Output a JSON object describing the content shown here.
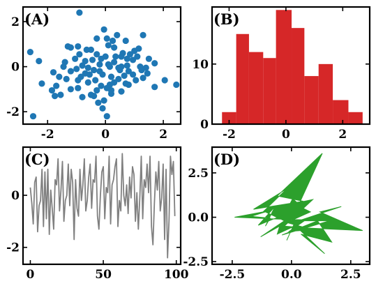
{
  "chart_data": [
    {
      "type": "scatter",
      "panel_label": "(A)",
      "color": "#1f77b4",
      "xlim": [
        -2.85,
        2.6
      ],
      "ylim": [
        -2.55,
        2.65
      ],
      "xticks": [
        -2,
        0,
        2
      ],
      "xtick_labels": [
        "-2",
        "0",
        "2"
      ],
      "yticks": [
        -2,
        0,
        2
      ],
      "ytick_labels": [
        "-2",
        "0",
        "2"
      ],
      "points": [
        [
          -0.9,
          2.4
        ],
        [
          -2.6,
          0.65
        ],
        [
          -1.2,
          0.85
        ],
        [
          -0.5,
          0.75
        ],
        [
          0.3,
          0.2
        ],
        [
          -0.35,
          -0.6
        ],
        [
          1.2,
          0.0
        ],
        [
          -0.7,
          -0.3
        ],
        [
          -1.2,
          -1.0
        ],
        [
          -0.95,
          -0.6
        ],
        [
          0.1,
          0.95
        ],
        [
          -0.9,
          0.55
        ],
        [
          0.5,
          -0.15
        ],
        [
          -1.4,
          0.2
        ],
        [
          1.7,
          -0.9
        ],
        [
          -0.15,
          -0.85
        ],
        [
          -0.6,
          -0.7
        ],
        [
          0.75,
          0.35
        ],
        [
          -1.3,
          0.9
        ],
        [
          1.1,
          0.45
        ],
        [
          -0.7,
          0.25
        ],
        [
          0.2,
          -1.2
        ],
        [
          -0.05,
          -1.5
        ],
        [
          -0.25,
          -1.6
        ],
        [
          0.3,
          -0.7
        ],
        [
          0.55,
          0.0
        ],
        [
          1.15,
          0.8
        ],
        [
          0.15,
          0.0
        ],
        [
          -1.05,
          0.35
        ],
        [
          -0.6,
          -0.05
        ],
        [
          -0.2,
          0.1
        ],
        [
          0.3,
          0.85
        ],
        [
          -0.45,
          0.3
        ],
        [
          -0.3,
          1.25
        ],
        [
          0.05,
          1.25
        ],
        [
          1.3,
          1.4
        ],
        [
          0.7,
          1.15
        ],
        [
          -1.8,
          -0.25
        ],
        [
          -2.3,
          0.25
        ],
        [
          -2.2,
          -0.75
        ],
        [
          -1.85,
          -1.05
        ],
        [
          -1.6,
          -0.45
        ],
        [
          -1.55,
          -1.25
        ],
        [
          -1.35,
          -0.55
        ],
        [
          -0.95,
          -0.95
        ],
        [
          -1.0,
          -0.1
        ],
        [
          -0.8,
          0.05
        ],
        [
          -0.4,
          -0.15
        ],
        [
          -0.1,
          -0.35
        ],
        [
          0.0,
          0.45
        ],
        [
          0.35,
          0.45
        ],
        [
          0.6,
          0.6
        ],
        [
          0.85,
          0.55
        ],
        [
          0.95,
          0.3
        ],
        [
          0.8,
          -0.2
        ],
        [
          0.95,
          -0.35
        ],
        [
          1.25,
          -0.15
        ],
        [
          1.45,
          -0.3
        ],
        [
          1.5,
          0.35
        ],
        [
          1.7,
          0.15
        ],
        [
          1.3,
          -0.5
        ],
        [
          2.05,
          -0.6
        ],
        [
          2.45,
          -0.8
        ],
        [
          0.05,
          -0.95
        ],
        [
          0.2,
          -0.45
        ],
        [
          0.45,
          -0.55
        ],
        [
          -0.3,
          -1.05
        ],
        [
          -0.5,
          -1.25
        ],
        [
          -0.8,
          -1.35
        ],
        [
          -0.1,
          -1.85
        ],
        [
          0.05,
          -2.2
        ],
        [
          -0.4,
          -1.3
        ],
        [
          0.7,
          -0.75
        ],
        [
          0.55,
          -1.1
        ],
        [
          -0.05,
          1.65
        ],
        [
          -0.3,
          0.55
        ],
        [
          -1.75,
          -1.3
        ],
        [
          0.8,
          -0.8
        ],
        [
          1.05,
          -0.6
        ],
        [
          -0.65,
          0.75
        ],
        [
          0.25,
          1.15
        ],
        [
          0.55,
          0.45
        ],
        [
          0.1,
          0.1
        ],
        [
          -0.15,
          0.35
        ],
        [
          -0.55,
          -0.35
        ],
        [
          -1.45,
          0.0
        ],
        [
          -1.2,
          -0.2
        ],
        [
          -2.5,
          -2.2
        ],
        [
          -1.7,
          -0.85
        ],
        [
          0.75,
          0.05
        ],
        [
          1.4,
          -0.05
        ],
        [
          1.0,
          0.7
        ],
        [
          0.45,
          -0.05
        ],
        [
          -0.85,
          -0.45
        ],
        [
          0.15,
          -0.8
        ],
        [
          0.4,
          1.4
        ],
        [
          0.2,
          -1.05
        ],
        [
          -0.2,
          -0.2
        ],
        [
          -0.95,
          0.9
        ],
        [
          0.65,
          -0.4
        ]
      ]
    },
    {
      "type": "bar",
      "panel_label": "(B)",
      "color": "#d62728",
      "xlim": [
        -2.6,
        2.95
      ],
      "ylim": [
        0,
        19.5
      ],
      "xticks": [
        -2,
        0,
        2
      ],
      "xtick_labels": [
        "-2",
        "0",
        "2"
      ],
      "yticks": [
        0,
        10
      ],
      "ytick_labels": [
        "0",
        "10"
      ],
      "bins": [
        {
          "x0": -2.25,
          "x1": -1.75,
          "count": 2
        },
        {
          "x0": -1.75,
          "x1": -1.3,
          "count": 15
        },
        {
          "x0": -1.3,
          "x1": -0.8,
          "count": 12
        },
        {
          "x0": -0.8,
          "x1": -0.35,
          "count": 11
        },
        {
          "x0": -0.35,
          "x1": 0.2,
          "count": 19
        },
        {
          "x0": 0.2,
          "x1": 0.65,
          "count": 16
        },
        {
          "x0": 0.65,
          "x1": 1.15,
          "count": 8
        },
        {
          "x0": 1.15,
          "x1": 1.65,
          "count": 10
        },
        {
          "x0": 1.65,
          "x1": 2.2,
          "count": 4
        },
        {
          "x0": 2.2,
          "x1": 2.7,
          "count": 2
        }
      ]
    },
    {
      "type": "line",
      "panel_label": "(C)",
      "color": "#808080",
      "xlim": [
        -5,
        103
      ],
      "ylim": [
        -2.65,
        1.85
      ],
      "xticks": [
        0,
        50,
        100
      ],
      "xtick_labels": [
        "0",
        "50",
        "100"
      ],
      "yticks": [
        -2,
        0
      ],
      "ytick_labels": [
        "-2",
        "0"
      ],
      "values": [
        0.3,
        -0.3,
        -1.1,
        0.5,
        0.7,
        -1.4,
        -0.4,
        -0.2,
        1.0,
        -1.2,
        0.9,
        -0.9,
        1.0,
        -1.5,
        0.2,
        -0.5,
        -1.3,
        0.6,
        0.4,
        1.4,
        -0.6,
        0.2,
        1.3,
        -1.0,
        -0.2,
        0.0,
        1.2,
        -0.4,
        1.0,
        0.5,
        -1.7,
        0.6,
        -0.5,
        -0.8,
        1.0,
        -0.2,
        0.4,
        1.4,
        -0.6,
        -0.2,
        0.7,
        1.2,
        -0.5,
        0.6,
        0.5,
        1.5,
        -0.8,
        -1.3,
        0.0,
        0.9,
        1.1,
        -0.9,
        0.3,
        0.1,
        1.5,
        -1.1,
        0.4,
        0.6,
        1.1,
        1.4,
        -1.2,
        -0.2,
        -0.6,
        1.6,
        0.0,
        -0.4,
        0.4,
        -0.7,
        0.7,
        -0.1,
        1.1,
        0.8,
        -1.0,
        0.1,
        -1.3,
        -0.1,
        1.5,
        -0.9,
        0.6,
        0.3,
        1.2,
        0.1,
        1.5,
        -1.2,
        -1.9,
        -0.3,
        0.9,
        0.2,
        1.3,
        -0.6,
        -0.1,
        1.2,
        -1.7,
        1.0,
        -2.4,
        -1.0,
        1.5,
        0.8,
        1.3,
        -0.8
      ]
    },
    {
      "type": "area",
      "panel_label": "(D)",
      "color": "#2ca02c",
      "xlim": [
        -3.35,
        3.3
      ],
      "ylim": [
        -2.65,
        3.95
      ],
      "xticks": [
        -2.5,
        0.0,
        2.5
      ],
      "xtick_labels": [
        "-2.5",
        "0.0",
        "2.5"
      ],
      "yticks": [
        -2.5,
        0.0,
        2.5
      ],
      "ytick_labels": [
        "-2.5",
        "0.0",
        "2.5"
      ],
      "points": [
        [
          -2.4,
          0.0
        ],
        [
          -1.2,
          0.3
        ],
        [
          -0.2,
          1.6
        ],
        [
          -1.6,
          0.45
        ],
        [
          0.5,
          0.9
        ],
        [
          -0.6,
          1.2
        ],
        [
          1.3,
          3.6
        ],
        [
          0.2,
          0.4
        ],
        [
          -0.9,
          0.5
        ],
        [
          0.9,
          1.0
        ],
        [
          -0.3,
          -0.5
        ],
        [
          0.6,
          -0.6
        ],
        [
          3.0,
          -0.75
        ],
        [
          1.2,
          0.3
        ],
        [
          2.1,
          0.6
        ],
        [
          0.3,
          -0.2
        ],
        [
          1.6,
          -0.2
        ],
        [
          -0.4,
          -1.0
        ],
        [
          1.1,
          -0.2
        ],
        [
          1.7,
          -1.4
        ],
        [
          0.4,
          -0.95
        ],
        [
          1.4,
          -2.05
        ],
        [
          0.1,
          -0.4
        ],
        [
          -0.2,
          -1.3
        ],
        [
          0.0,
          -0.7
        ],
        [
          0.3,
          -0.4
        ],
        [
          -0.6,
          -0.95
        ],
        [
          -0.5,
          -0.5
        ],
        [
          -1.3,
          -1.1
        ],
        [
          -0.3,
          -0.2
        ],
        [
          -1.1,
          0.3
        ],
        [
          -1.7,
          0.05
        ],
        [
          -0.9,
          -0.05
        ],
        [
          -1.1,
          -0.5
        ],
        [
          -0.7,
          0.6
        ],
        [
          -1.4,
          -0.45
        ],
        [
          -0.3,
          0.15
        ],
        [
          0.05,
          1.05
        ],
        [
          0.5,
          0.5
        ],
        [
          0.8,
          0.3
        ],
        [
          -0.2,
          -0.3
        ],
        [
          0.9,
          -0.7
        ],
        [
          -0.1,
          -0.8
        ],
        [
          0.6,
          -0.15
        ],
        [
          -0.6,
          -0.1
        ],
        [
          -2.4,
          0.0
        ]
      ]
    }
  ]
}
